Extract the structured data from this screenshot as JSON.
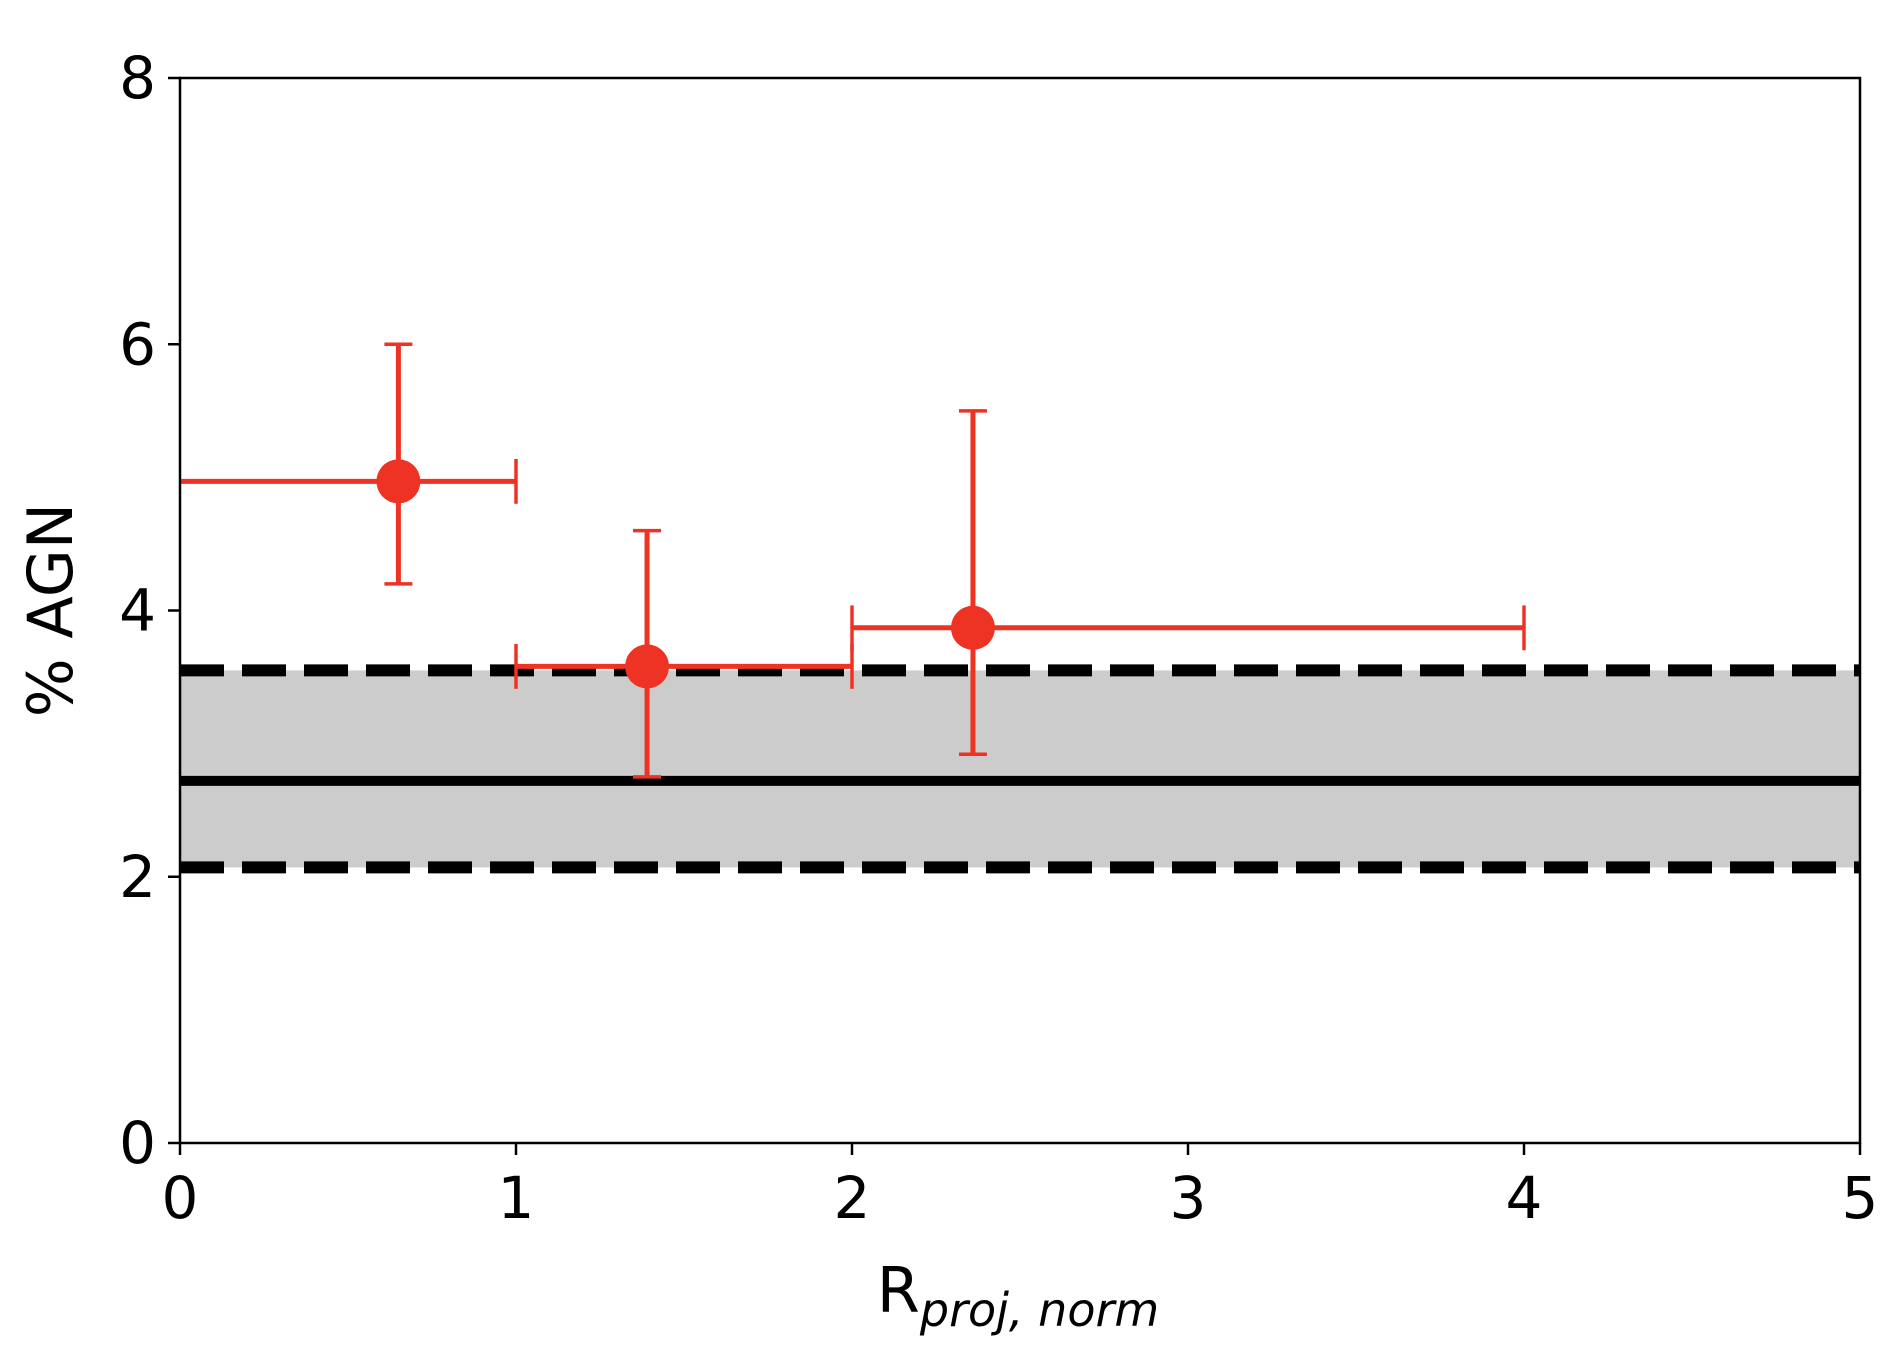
{
  "chart_data": {
    "type": "scatter",
    "title": "",
    "xlabel_main": "R",
    "xlabel_sub": "proj, norm",
    "ylabel": "% AGN",
    "xlim": [
      0,
      5
    ],
    "ylim": [
      0,
      8
    ],
    "xticks": [
      "0",
      "1",
      "2",
      "3",
      "4",
      "5"
    ],
    "yticks": [
      "0",
      "2",
      "4",
      "6",
      "8"
    ],
    "grid": false,
    "legend": "none",
    "series": [
      {
        "color": "#ee3224",
        "points": [
          {
            "x": 0.65,
            "y": 4.97,
            "xmin": 0.0,
            "xmax": 1.0,
            "ymin": 4.2,
            "ymax": 6.0
          },
          {
            "x": 1.39,
            "y": 3.58,
            "xmin": 1.0,
            "xmax": 2.0,
            "ymin": 2.75,
            "ymax": 4.6
          },
          {
            "x": 2.36,
            "y": 3.87,
            "xmin": 2.0,
            "xmax": 4.0,
            "ymin": 2.92,
            "ymax": 5.5
          }
        ]
      }
    ],
    "reference": {
      "mean": 2.72,
      "band_low": 2.07,
      "band_high": 3.55,
      "band_color": "#cccccc",
      "line_color": "#000000"
    }
  }
}
